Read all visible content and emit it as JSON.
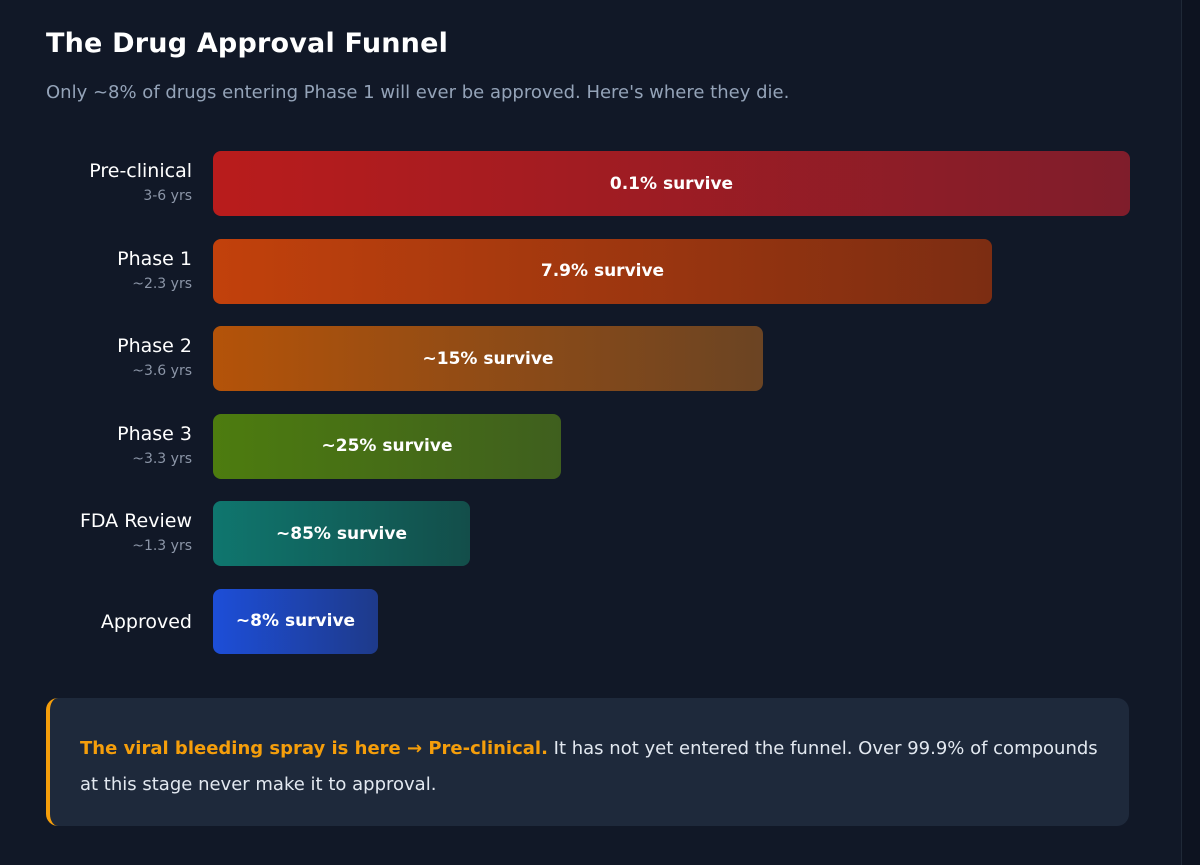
{
  "page": {
    "title": "The Drug Approval Funnel",
    "subtitle": "Only ~8% of drugs entering Phase 1 will ever be approved. Here's where they die."
  },
  "chart_data": {
    "type": "bar",
    "orientation": "horizontal",
    "title": "The Drug Approval Funnel",
    "subtitle": "Only ~8% of drugs entering Phase 1 will ever be approved. Here's where they die.",
    "categories": [
      "Pre-clinical",
      "Phase 1",
      "Phase 2",
      "Phase 3",
      "FDA Review",
      "Approved"
    ],
    "durations": [
      "3-6 yrs",
      "~2.3 yrs",
      "~3.6 yrs",
      "~3.3 yrs",
      "~1.3 yrs",
      ""
    ],
    "bar_labels": [
      "0.1% survive",
      "7.9% survive",
      "~15% survive",
      "~25% survive",
      "~85% survive",
      "~8% survive"
    ],
    "values": [
      100,
      85,
      60,
      38,
      28,
      18
    ],
    "value_units": "relative bar length (% of widest bar)",
    "colors": [
      [
        "#b91c1c",
        "#7f1d2b"
      ],
      [
        "#c2410c",
        "#7c2d12"
      ],
      [
        "#b45309",
        "#6b4423"
      ],
      [
        "#4d7c0f",
        "#3f5f1e"
      ],
      [
        "#0f766e",
        "#134e4a"
      ],
      [
        "#1d4ed8",
        "#1e3a8a"
      ]
    ],
    "grid": false,
    "legend": "none"
  },
  "callout": {
    "highlight": "The viral bleeding spray is here → Pre-clinical.",
    "text": " It has not yet entered the funnel. Over 99.9% of compounds at this stage never make it to approval.",
    "accent": "#f59e0b"
  }
}
